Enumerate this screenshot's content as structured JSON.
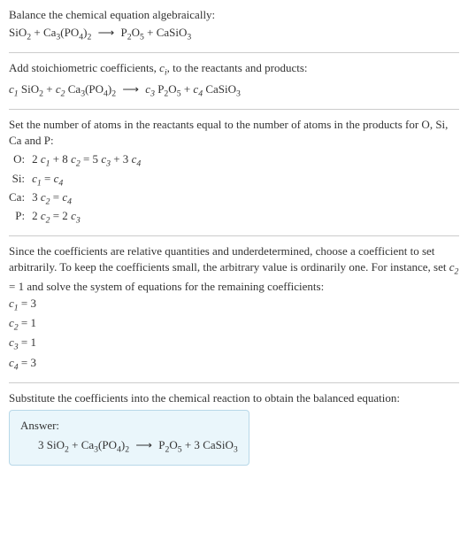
{
  "colors": {
    "text": "#333333",
    "background": "#ffffff",
    "separator": "#cccccc",
    "answer_bg": "#eaf6fb",
    "answer_border": "#b8d8e8"
  },
  "section1": {
    "intro": "Balance the chemical equation algebraically:"
  },
  "section2": {
    "intro_a": "Add stoichiometric coefficients, ",
    "intro_b": ", to the reactants and products:"
  },
  "section3": {
    "intro": "Set the number of atoms in the reactants equal to the number of atoms in the products for O, Si, Ca and P:",
    "rows": {
      "o_label": "O:",
      "si_label": "Si:",
      "ca_label": "Ca:",
      "p_label": "P:"
    }
  },
  "section4": {
    "intro_a": "Since the coefficients are relative quantities and underdetermined, choose a coefficient to set arbitrarily. To keep the coefficients small, the arbitrary value is ordinarily one. For instance, set ",
    "intro_b": " = 1 and solve the system of equations for the remaining coefficients:"
  },
  "section5": {
    "intro": "Substitute the coefficients into the chemical reaction to obtain the balanced equation:",
    "answer_label": "Answer:"
  },
  "chem": {
    "SiO2": "SiO",
    "SiO2_sub": "2",
    "Ca3PO4_a": "Ca",
    "Ca3PO4_a_sub": "3",
    "Ca3PO4_b": "(PO",
    "Ca3PO4_b_sub": "4",
    "Ca3PO4_c": ")",
    "Ca3PO4_c_sub": "2",
    "P2O5_a": "P",
    "P2O5_a_sub": "2",
    "P2O5_b": "O",
    "P2O5_b_sub": "5",
    "CaSiO3_a": "CaSiO",
    "CaSiO3_a_sub": "3",
    "plus": " + ",
    "arrow": "⟶"
  },
  "coef": {
    "c": "c",
    "i": "i",
    "n1": "1",
    "n2": "2",
    "n3": "3",
    "n4": "4",
    "sp": " "
  },
  "eqs": {
    "o_lhs_a": "2 ",
    "o_lhs_b": " + 8 ",
    "o_rhs_a": " = 5 ",
    "o_rhs_b": " + 3 ",
    "si_eq": " = ",
    "ca_lhs": "3 ",
    "ca_eq": " = ",
    "p_lhs": "2 ",
    "p_eq": " = 2 "
  },
  "solved": {
    "c1": " = 3",
    "c2": " = 1",
    "c3": " = 1",
    "c4": " = 3"
  },
  "final": {
    "three_a": "3 ",
    "three_b": " + 3 "
  }
}
